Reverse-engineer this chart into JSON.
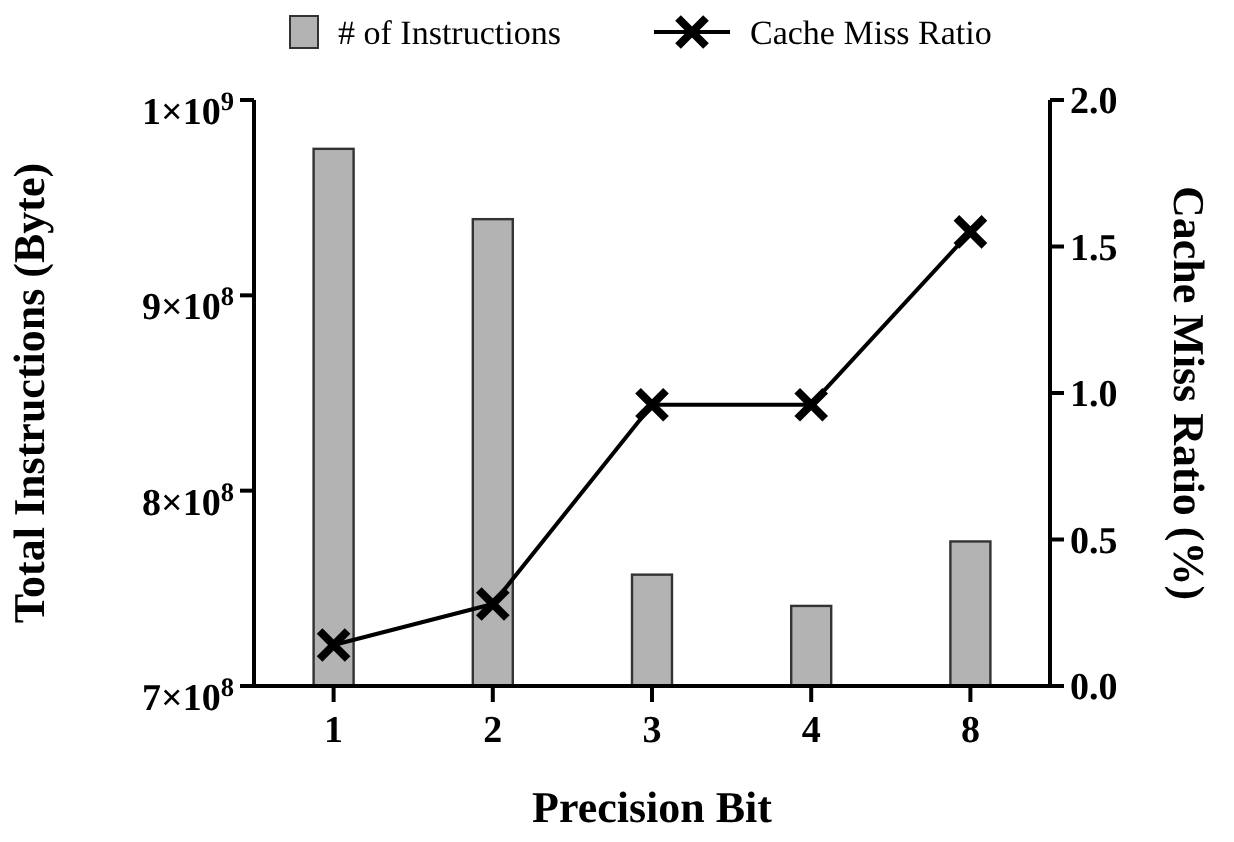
{
  "chart_data": {
    "type": "bar",
    "xlabel": "Precision Bit",
    "ylabel": "Total Instructions (Byte)",
    "y2label": "Cache Miss Ratio (%)",
    "categories": [
      "1",
      "2",
      "3",
      "4",
      "8"
    ],
    "series": [
      {
        "name": "# of Instructions",
        "color": "#b3b3b3",
        "values": [
          975000000,
          939000000,
          757000000,
          741000000,
          774000000
        ]
      },
      {
        "name": "Cache Miss Ratio",
        "type": "line",
        "axis": "y2",
        "color": "#000000",
        "marker": "cross",
        "values": [
          0.14,
          0.28,
          0.96,
          0.96,
          1.55
        ]
      }
    ],
    "ylim": [
      700000000,
      1000000000
    ],
    "yticks": [
      {
        "value": 700000000,
        "label": "7×10$^{8}$"
      },
      {
        "value": 800000000,
        "label": "8×10$^{8}$"
      },
      {
        "value": 900000000,
        "label": "9×10$^{8}$"
      },
      {
        "value": 1000000000,
        "label": "1×10$^{9}$"
      }
    ],
    "y2lim": [
      0,
      2
    ],
    "y2ticks": [
      {
        "value": 0,
        "label": "0.0"
      },
      {
        "value": 0.5,
        "label": "0.5"
      },
      {
        "value": 1,
        "label": "1.0"
      },
      {
        "value": 1.5,
        "label": "1.5"
      },
      {
        "value": 2,
        "label": "2.0"
      }
    ],
    "grid": false,
    "legend": "top"
  }
}
